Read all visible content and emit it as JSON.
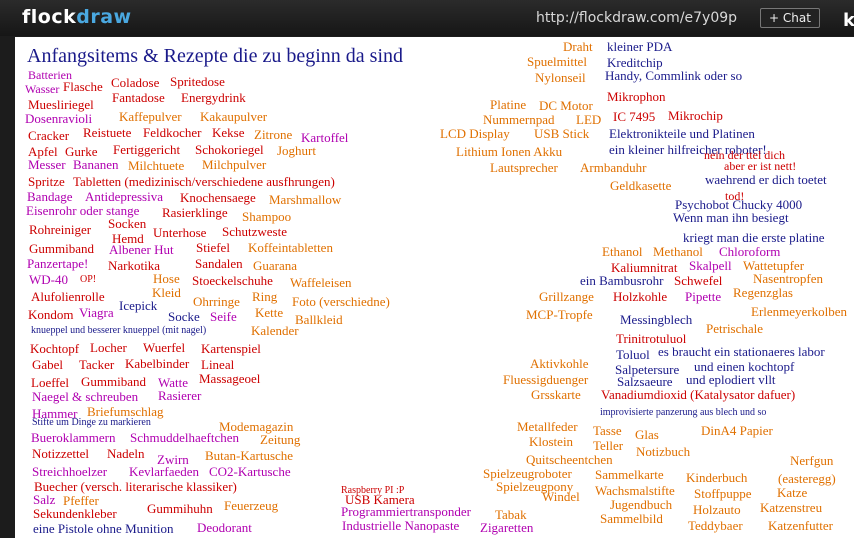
{
  "app": {
    "logo_prefix": "flock",
    "logo_suffix": "draw",
    "url": "http://flockdraw.com/e7y09p",
    "chat_button": "+ Chat",
    "edge_glyph": "k"
  },
  "board": {
    "title": "Anfangsitems & Rezepte die zu beginn da sind",
    "colors": {
      "title": "#1a1a8a"
    },
    "words": [
      {
        "t": "Batterien",
        "c": "#b000b0"
      },
      {
        "t": "Wasser",
        "c": "#b000b0"
      },
      {
        "t": "Flasche",
        "c": "#cc0000"
      },
      {
        "t": "Coladose",
        "c": "#cc0000"
      },
      {
        "t": "Spritedose",
        "c": "#cc0000"
      },
      {
        "t": "Fantadose",
        "c": "#cc0000"
      },
      {
        "t": "Energydrink",
        "c": "#cc0000"
      },
      {
        "t": "Muesliriegel",
        "c": "#cc0000"
      },
      {
        "t": "Dosenravioli",
        "c": "#b000b0"
      },
      {
        "t": "Kaffepulver",
        "c": "#e07000"
      },
      {
        "t": "Kakaupulver",
        "c": "#e07000"
      },
      {
        "t": "Cracker",
        "c": "#cc0000"
      },
      {
        "t": "Reistuete",
        "c": "#cc0000"
      },
      {
        "t": "Feldkocher",
        "c": "#cc0000"
      },
      {
        "t": "Kekse",
        "c": "#cc0000"
      },
      {
        "t": "Zitrone",
        "c": "#e07000"
      },
      {
        "t": "Kartoffel",
        "c": "#b000b0"
      },
      {
        "t": "Apfel",
        "c": "#cc0000"
      },
      {
        "t": "Gurke",
        "c": "#cc0000"
      },
      {
        "t": "Fertiggericht",
        "c": "#cc0000"
      },
      {
        "t": "Schokoriegel",
        "c": "#cc0000"
      },
      {
        "t": "Joghurt",
        "c": "#e07000"
      },
      {
        "t": "Messer",
        "c": "#b000b0"
      },
      {
        "t": "Bananen",
        "c": "#b000b0"
      },
      {
        "t": "Milchtuete",
        "c": "#e07000"
      },
      {
        "t": "Milchpulver",
        "c": "#e07000"
      },
      {
        "t": "Spritze",
        "c": "#cc0000"
      },
      {
        "t": "Tabletten (medizinisch/verschiedene ausfhrungen)",
        "c": "#cc0000"
      },
      {
        "t": "Bandage",
        "c": "#b000b0"
      },
      {
        "t": "Antidepressiva",
        "c": "#b000b0"
      },
      {
        "t": "Knochensaege",
        "c": "#cc0000"
      },
      {
        "t": "Marshmallow",
        "c": "#e07000"
      },
      {
        "t": "Eisenrohr oder stange",
        "c": "#b000b0"
      },
      {
        "t": "Rasierklinge",
        "c": "#cc0000"
      },
      {
        "t": "Shampoo",
        "c": "#e07000"
      },
      {
        "t": "Rohreiniger",
        "c": "#cc0000"
      },
      {
        "t": "Socken",
        "c": "#cc0000"
      },
      {
        "t": "Hemd",
        "c": "#cc0000"
      },
      {
        "t": "Unterhose",
        "c": "#cc0000"
      },
      {
        "t": "Schutzweste",
        "c": "#cc0000"
      },
      {
        "t": "Gummiband",
        "c": "#cc0000"
      },
      {
        "t": "Albener Hut",
        "c": "#b000b0"
      },
      {
        "t": "Stiefel",
        "c": "#cc0000"
      },
      {
        "t": "Koffeintabletten",
        "c": "#e07000"
      },
      {
        "t": "Panzertape!",
        "c": "#b000b0"
      },
      {
        "t": "Narkotika",
        "c": "#cc0000"
      },
      {
        "t": "Sandalen",
        "c": "#cc0000"
      },
      {
        "t": "Guarana",
        "c": "#e07000"
      },
      {
        "t": "WD-40",
        "c": "#b000b0"
      },
      {
        "t": "OP!",
        "c": "#cc0000"
      },
      {
        "t": "Hose",
        "c": "#e07000"
      },
      {
        "t": "Stoeckelschuhe",
        "c": "#cc0000"
      },
      {
        "t": "Waffeleisen",
        "c": "#e07000"
      },
      {
        "t": "Alufolienrolle",
        "c": "#cc0000"
      },
      {
        "t": "Kleid",
        "c": "#e07000"
      },
      {
        "t": "Ring",
        "c": "#e07000"
      },
      {
        "t": "Ohrringe",
        "c": "#e07000"
      },
      {
        "t": "Foto (verschiedne)",
        "c": "#e07000"
      },
      {
        "t": "Kondom",
        "c": "#cc0000"
      },
      {
        "t": "Viagra",
        "c": "#b000b0"
      },
      {
        "t": "Icepick",
        "c": "#1a1a8a"
      },
      {
        "t": "Socke",
        "c": "#1a1a8a"
      },
      {
        "t": "Seife",
        "c": "#b000b0"
      },
      {
        "t": "Kette",
        "c": "#e07000"
      },
      {
        "t": "Ballkleid",
        "c": "#e07000"
      },
      {
        "t": "knueppel und besserer knueppel (mit nagel)",
        "c": "#1a1a8a"
      },
      {
        "t": "Kalender",
        "c": "#e07000"
      },
      {
        "t": "Kochtopf",
        "c": "#cc0000"
      },
      {
        "t": "Locher",
        "c": "#cc0000"
      },
      {
        "t": "Wuerfel",
        "c": "#cc0000"
      },
      {
        "t": "Kartenspiel",
        "c": "#cc0000"
      },
      {
        "t": "Gabel",
        "c": "#cc0000"
      },
      {
        "t": "Tacker",
        "c": "#cc0000"
      },
      {
        "t": "Kabelbinder",
        "c": "#cc0000"
      },
      {
        "t": "Lineal",
        "c": "#cc0000"
      },
      {
        "t": "Loeffel",
        "c": "#cc0000"
      },
      {
        "t": "Gummiband",
        "c": "#cc0000"
      },
      {
        "t": "Watte",
        "c": "#b000b0"
      },
      {
        "t": "Massageoel",
        "c": "#cc0000"
      },
      {
        "t": "Naegel & schreuben",
        "c": "#b000b0"
      },
      {
        "t": "Rasierer",
        "c": "#b000b0"
      },
      {
        "t": "Hammer",
        "c": "#b000b0"
      },
      {
        "t": "Briefumschlag",
        "c": "#e07000"
      },
      {
        "t": "Stifte um Dinge zu markieren",
        "c": "#1a1a8a"
      },
      {
        "t": "Modemagazin",
        "c": "#e07000"
      },
      {
        "t": "Bueroklammern",
        "c": "#b000b0"
      },
      {
        "t": "Schmuddelhaeftchen",
        "c": "#b000b0"
      },
      {
        "t": "Zeitung",
        "c": "#e07000"
      },
      {
        "t": "Notizzettel",
        "c": "#cc0000"
      },
      {
        "t": "Nadeln",
        "c": "#cc0000"
      },
      {
        "t": "Zwirn",
        "c": "#b000b0"
      },
      {
        "t": "Butan-Kartusche",
        "c": "#e07000"
      },
      {
        "t": "Streichhoelzer",
        "c": "#b000b0"
      },
      {
        "t": "Kevlarfaeden",
        "c": "#b000b0"
      },
      {
        "t": "CO2-Kartusche",
        "c": "#b000b0"
      },
      {
        "t": "Buecher (versch. literarische klassiker)",
        "c": "#cc0000"
      },
      {
        "t": "Salz",
        "c": "#b000b0"
      },
      {
        "t": "Pfeffer",
        "c": "#e07000"
      },
      {
        "t": "Gummihuhn",
        "c": "#cc0000"
      },
      {
        "t": "Feuerzeug",
        "c": "#e07000"
      },
      {
        "t": "Sekundenkleber",
        "c": "#cc0000"
      },
      {
        "t": "eine Pistole ohne Munition",
        "c": "#1a1a8a"
      },
      {
        "t": "Deodorant",
        "c": "#b000b0"
      },
      {
        "t": "Raspberry PI :P",
        "c": "#cc0000"
      },
      {
        "t": "USB Kamera",
        "c": "#cc0000"
      },
      {
        "t": "Programmiertransponder",
        "c": "#b000b0"
      },
      {
        "t": "Tabak",
        "c": "#e07000"
      },
      {
        "t": "Industrielle Nanopaste",
        "c": "#b000b0"
      },
      {
        "t": "Zigaretten",
        "c": "#b000b0"
      },
      {
        "t": "Draht",
        "c": "#e07000"
      },
      {
        "t": "kleiner PDA",
        "c": "#1a1a8a"
      },
      {
        "t": "Spuelmittel",
        "c": "#e07000"
      },
      {
        "t": "Kreditchip",
        "c": "#1a1a8a"
      },
      {
        "t": "Nylonseil",
        "c": "#e07000"
      },
      {
        "t": "Handy, Commlink oder so",
        "c": "#1a1a8a"
      },
      {
        "t": "Mikrophon",
        "c": "#cc0000"
      },
      {
        "t": "Platine",
        "c": "#e07000"
      },
      {
        "t": "DC Motor",
        "c": "#e07000"
      },
      {
        "t": "Nummernpad",
        "c": "#e07000"
      },
      {
        "t": "LED",
        "c": "#e07000"
      },
      {
        "t": "IC 7495",
        "c": "#cc0000"
      },
      {
        "t": "Mikrochip",
        "c": "#cc0000"
      },
      {
        "t": "LCD Display",
        "c": "#e07000"
      },
      {
        "t": "USB Stick",
        "c": "#e07000"
      },
      {
        "t": "Elektronikteile und Platinen",
        "c": "#1a1a8a"
      },
      {
        "t": "Lithium Ionen Akku",
        "c": "#e07000"
      },
      {
        "t": "ein kleiner hilfreicher roboter!",
        "c": "#1a1a8a"
      },
      {
        "t": "nein der ttel dich",
        "c": "#cc0000"
      },
      {
        "t": "Lautsprecher",
        "c": "#e07000"
      },
      {
        "t": "Armbanduhr",
        "c": "#e07000"
      },
      {
        "t": "aber er ist nett!",
        "c": "#cc0000"
      },
      {
        "t": "waehrend er dich toetet",
        "c": "#1a1a8a"
      },
      {
        "t": "Geldkasette",
        "c": "#e07000"
      },
      {
        "t": "tod!",
        "c": "#cc0000"
      },
      {
        "t": "Psychobot Chucky 4000",
        "c": "#1a1a8a"
      },
      {
        "t": "Wenn man ihn besiegt",
        "c": "#1a1a8a"
      },
      {
        "t": "kriegt man die erste platine",
        "c": "#1a1a8a"
      },
      {
        "t": "Ethanol",
        "c": "#e07000"
      },
      {
        "t": "Methanol",
        "c": "#e07000"
      },
      {
        "t": "Chloroform",
        "c": "#b000b0"
      },
      {
        "t": "Kaliumnitrat",
        "c": "#cc0000"
      },
      {
        "t": "Skalpell",
        "c": "#b000b0"
      },
      {
        "t": "Wattetupfer",
        "c": "#e07000"
      },
      {
        "t": "ein Bambusrohr",
        "c": "#1a1a8a"
      },
      {
        "t": "Schwefel",
        "c": "#cc0000"
      },
      {
        "t": "Nasentropfen",
        "c": "#e07000"
      },
      {
        "t": "Grillzange",
        "c": "#e07000"
      },
      {
        "t": "Holzkohle",
        "c": "#cc0000"
      },
      {
        "t": "Pipette",
        "c": "#b000b0"
      },
      {
        "t": "Regenzglas",
        "c": "#e07000"
      },
      {
        "t": "MCP-Tropfe",
        "c": "#e07000"
      },
      {
        "t": "Messingblech",
        "c": "#1a1a8a"
      },
      {
        "t": "Erlenmeyerkolben",
        "c": "#e07000"
      },
      {
        "t": "Petrischale",
        "c": "#e07000"
      },
      {
        "t": "Trinitrotuluol",
        "c": "#cc0000"
      },
      {
        "t": "Toluol",
        "c": "#1a1a8a"
      },
      {
        "t": "es braucht ein stationaeres labor",
        "c": "#1a1a8a"
      },
      {
        "t": "Aktivkohle",
        "c": "#e07000"
      },
      {
        "t": "Salpetersure",
        "c": "#1a1a8a"
      },
      {
        "t": "und einen kochtopf",
        "c": "#1a1a8a"
      },
      {
        "t": "Fluessigduenger",
        "c": "#e07000"
      },
      {
        "t": "Salzsaeure",
        "c": "#1a1a8a"
      },
      {
        "t": "und eplodiert vllt",
        "c": "#1a1a8a"
      },
      {
        "t": "Grsskarte",
        "c": "#e07000"
      },
      {
        "t": "Vanadiumdioxid (Katalysator dafuer)",
        "c": "#cc0000"
      },
      {
        "t": "improvisierte panzerung aus blech und so",
        "c": "#1a1a8a"
      },
      {
        "t": "Metallfeder",
        "c": "#e07000"
      },
      {
        "t": "Tasse",
        "c": "#e07000"
      },
      {
        "t": "Glas",
        "c": "#e07000"
      },
      {
        "t": "DinA4 Papier",
        "c": "#e07000"
      },
      {
        "t": "Klostein",
        "c": "#e07000"
      },
      {
        "t": "Teller",
        "c": "#e07000"
      },
      {
        "t": "Notizbuch",
        "c": "#e07000"
      },
      {
        "t": "Quitscheentchen",
        "c": "#e07000"
      },
      {
        "t": "Nerfgun",
        "c": "#e07000"
      },
      {
        "t": "Spielzeugroboter",
        "c": "#e07000"
      },
      {
        "t": "Sammelkarte",
        "c": "#e07000"
      },
      {
        "t": "Kinderbuch",
        "c": "#e07000"
      },
      {
        "t": "(easteregg)",
        "c": "#e07000"
      },
      {
        "t": "Spielzeugpony",
        "c": "#e07000"
      },
      {
        "t": "Windel",
        "c": "#e07000"
      },
      {
        "t": "Wachsmalstifte",
        "c": "#e07000"
      },
      {
        "t": "Stoffpuppe",
        "c": "#e07000"
      },
      {
        "t": "Katze",
        "c": "#e07000"
      },
      {
        "t": "Jugendbuch",
        "c": "#e07000"
      },
      {
        "t": "Holzauto",
        "c": "#e07000"
      },
      {
        "t": "Katzenstreu",
        "c": "#e07000"
      },
      {
        "t": "Sammelbild",
        "c": "#e07000"
      },
      {
        "t": "Teddybaer",
        "c": "#e07000"
      },
      {
        "t": "Katzenfutter",
        "c": "#e07000"
      }
    ]
  }
}
